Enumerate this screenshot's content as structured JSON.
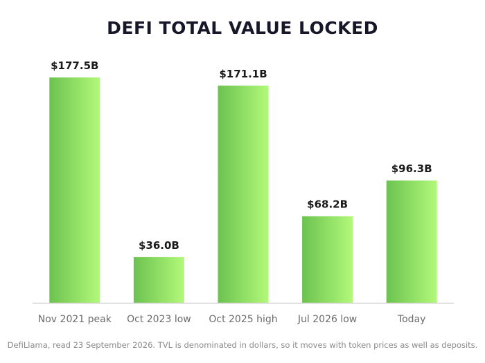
{
  "colors": {
    "bar_start": "#6cc250",
    "bar_end": "#b2f97a",
    "axis": "#d3d3d3"
  },
  "chart_data": {
    "type": "bar",
    "title": "DEFI TOTAL VALUE LOCKED",
    "xlabel": "",
    "ylabel": "",
    "ylim": [
      0,
      177.5
    ],
    "grid": false,
    "categories": [
      "Nov 2021 peak",
      "Oct 2023 low",
      "Oct 2025 high",
      "Jul 2026 low",
      "Today"
    ],
    "values": [
      177.5,
      36.0,
      171.1,
      68.2,
      96.3
    ],
    "value_labels": [
      "$177.5B",
      "$36.0B",
      "$171.1B",
      "$68.2B",
      "$96.3B"
    ]
  },
  "footer": {
    "source_note": "DefiLlama, read 23 September 2026. TVL is denominated in dollars, so it moves with token prices as well as deposits."
  }
}
